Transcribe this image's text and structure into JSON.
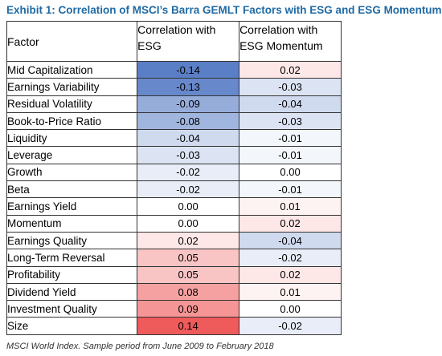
{
  "title": "Exhibit 1: Correlation of MSCI’s Barra GEMLT Factors with ESG and ESG Momentum",
  "footnote": "MSCI World Index. Sample period from June  2009 to February 2018",
  "colors": {
    "title": "#1f6aa5",
    "negative": "#5b7fc6",
    "positive": "#ef5a5a",
    "neutral": "#ffffff"
  },
  "chart_data": {
    "type": "table",
    "columns": [
      "Factor",
      "Correlation with ESG",
      "Correlation with ESG Momentum"
    ],
    "rows": [
      {
        "factor": "Mid Capitalization",
        "esg": "-0.14",
        "esg_momentum": "0.02"
      },
      {
        "factor": "Earnings Variability",
        "esg": "-0.13",
        "esg_momentum": "-0.03"
      },
      {
        "factor": "Residual Volatility",
        "esg": "-0.09",
        "esg_momentum": "-0.04"
      },
      {
        "factor": "Book-to-Price Ratio",
        "esg": "-0.08",
        "esg_momentum": "-0.03"
      },
      {
        "factor": "Liquidity",
        "esg": "-0.04",
        "esg_momentum": "-0.01"
      },
      {
        "factor": "Leverage",
        "esg": "-0.03",
        "esg_momentum": "-0.01"
      },
      {
        "factor": "Growth",
        "esg": "-0.02",
        "esg_momentum": "0.00"
      },
      {
        "factor": "Beta",
        "esg": "-0.02",
        "esg_momentum": "-0.01"
      },
      {
        "factor": "Earnings Yield",
        "esg": "0.00",
        "esg_momentum": "0.01"
      },
      {
        "factor": "Momentum",
        "esg": "0.00",
        "esg_momentum": "0.02"
      },
      {
        "factor": "Earnings Quality",
        "esg": "0.02",
        "esg_momentum": "-0.04"
      },
      {
        "factor": "Long-Term Reversal",
        "esg": "0.05",
        "esg_momentum": "-0.02"
      },
      {
        "factor": "Profitability",
        "esg": "0.05",
        "esg_momentum": "0.02"
      },
      {
        "factor": "Dividend Yield",
        "esg": "0.08",
        "esg_momentum": "0.01"
      },
      {
        "factor": "Investment Quality",
        "esg": "0.09",
        "esg_momentum": "0.00"
      },
      {
        "factor": "Size",
        "esg": "0.14",
        "esg_momentum": "-0.02"
      }
    ]
  }
}
